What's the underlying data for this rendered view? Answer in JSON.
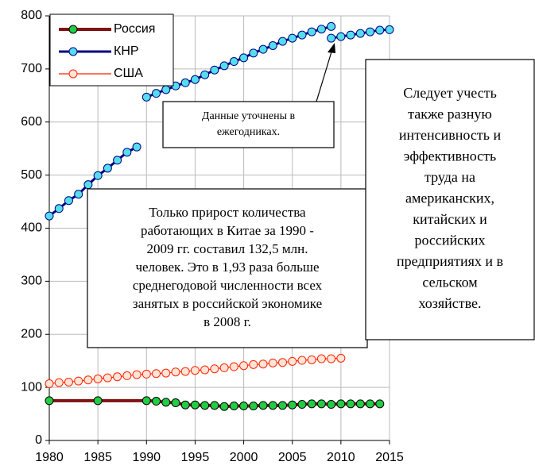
{
  "chart_data": {
    "type": "line",
    "grid": true,
    "legend_position": "upper left",
    "xlim": [
      1980,
      2015
    ],
    "xticks": [
      1980,
      1985,
      1990,
      1995,
      2000,
      2005,
      2010,
      2015
    ],
    "ylim": [
      0,
      800
    ],
    "yticks": [
      0,
      100,
      200,
      300,
      400,
      500,
      600,
      700,
      800
    ],
    "series": [
      {
        "name": "Россия",
        "color": "#7f1212",
        "marker_color": "#22cc44",
        "x": [
          1980,
          1985,
          1990,
          1991,
          1992,
          1993,
          1994,
          1995,
          1996,
          1997,
          1998,
          1999,
          2000,
          2001,
          2002,
          2003,
          2004,
          2005,
          2006,
          2007,
          2008,
          2009,
          2010,
          2011,
          2012,
          2013,
          2014
        ],
        "values": [
          75,
          75,
          75,
          74,
          72,
          71,
          67,
          67,
          66,
          66,
          64,
          65,
          65,
          65,
          66,
          66,
          66,
          67,
          68,
          69,
          69,
          68,
          69,
          69,
          69,
          69,
          69
        ]
      },
      {
        "name": "КНР",
        "color": "#000080",
        "marker_color": "#55ddee",
        "x": [
          1980,
          1981,
          1982,
          1983,
          1984,
          1985,
          1986,
          1987,
          1988,
          1989,
          null,
          1990,
          1991,
          1992,
          1993,
          1994,
          1995,
          1996,
          1997,
          1998,
          1999,
          2000,
          2001,
          2002,
          2003,
          2004,
          2005,
          2006,
          2007,
          2008,
          2009,
          null,
          2009,
          2010,
          2011,
          2012,
          2013,
          2014,
          2015
        ],
        "values": [
          423,
          437,
          452,
          464,
          482,
          499,
          513,
          528,
          543,
          553,
          null,
          647,
          654,
          661,
          668,
          674,
          680,
          689,
          698,
          706,
          714,
          721,
          730,
          737,
          744,
          752,
          758,
          764,
          770,
          775,
          780,
          null,
          758,
          761,
          764,
          767,
          770,
          773,
          774
        ]
      },
      {
        "name": "США",
        "color": "#ff2200",
        "marker_color": "#ffe4d8",
        "x": [
          1980,
          1981,
          1982,
          1983,
          1984,
          1985,
          1986,
          1987,
          1988,
          1989,
          1990,
          1991,
          1992,
          1993,
          1994,
          1995,
          1996,
          1997,
          1998,
          1999,
          2000,
          2001,
          2002,
          2003,
          2004,
          2005,
          2006,
          2007,
          2008,
          2009,
          2010
        ],
        "values": [
          107,
          109,
          110,
          112,
          114,
          116,
          118,
          120,
          122,
          124,
          125,
          126,
          127,
          129,
          130,
          132,
          133,
          135,
          137,
          139,
          141,
          143,
          144,
          146,
          147,
          149,
          151,
          152,
          154,
          154,
          155
        ]
      }
    ],
    "annotations": [
      {
        "lines": [
          "Данные уточнены в",
          "ежегодниках."
        ]
      },
      {
        "lines": [
          "Только прирост количества",
          "работающих в Китае за 1990 -",
          "2009 гг. составил 132,5 млн.",
          "человек. Это в 1,93 раза больше",
          "среднегодовой численности  всех",
          "занятых в российской экономике",
          "в 2008 г."
        ]
      },
      {
        "lines": [
          "Следует учесть",
          "также разную",
          "интенсивность и",
          "эффективность",
          "труда на",
          "американских,",
          "китайских и",
          "российских",
          "предприятиях и в",
          "сельском",
          "хозяйстве."
        ]
      }
    ]
  }
}
